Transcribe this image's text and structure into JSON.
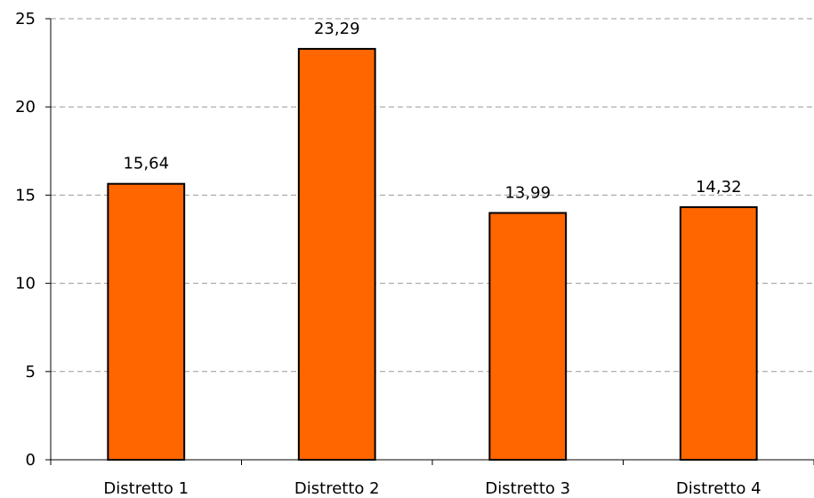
{
  "chart_data": {
    "type": "bar",
    "title": "",
    "xlabel": "",
    "ylabel": "",
    "categories": [
      "Distretto 1",
      "Distretto 2",
      "Distretto 3",
      "Distretto 4"
    ],
    "values": [
      15.64,
      23.29,
      13.99,
      14.32
    ],
    "value_labels": [
      "15,64",
      "23,29",
      "13,99",
      "14,32"
    ],
    "ylim": [
      0,
      25
    ],
    "yticks": [
      0,
      5,
      10,
      15,
      20,
      25
    ],
    "ytick_labels": [
      "0",
      "5",
      "10",
      "15",
      "20",
      "25"
    ],
    "grid": "horizontal-dashed",
    "legend": "none",
    "colors": {
      "bar_fill": "#FF6600",
      "bar_stroke": "#000000",
      "grid": "#999999",
      "axis": "#000000"
    }
  }
}
